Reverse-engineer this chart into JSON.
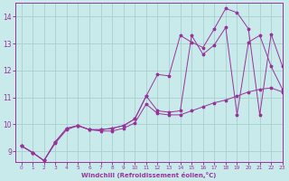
{
  "xlabel": "Windchill (Refroidissement éolien,°C)",
  "xlim": [
    -0.5,
    23
  ],
  "ylim": [
    8.6,
    14.5
  ],
  "yticks": [
    9,
    10,
    11,
    12,
    13,
    14
  ],
  "xticks": [
    0,
    1,
    2,
    3,
    4,
    5,
    6,
    7,
    8,
    9,
    10,
    11,
    12,
    13,
    14,
    15,
    16,
    17,
    18,
    19,
    20,
    21,
    22,
    23
  ],
  "bg_color": "#c8eaea",
  "grid_color": "#aacfcf",
  "line_color": "#993399",
  "series1_x": [
    0,
    1,
    2,
    3,
    4,
    5,
    6,
    7,
    8,
    9,
    10,
    11,
    12,
    13,
    14,
    15,
    16,
    17,
    18,
    19,
    20,
    21,
    22,
    23
  ],
  "series1_y": [
    9.2,
    8.95,
    8.65,
    9.3,
    9.8,
    9.95,
    9.8,
    9.75,
    9.75,
    9.85,
    10.05,
    10.75,
    10.4,
    10.35,
    10.35,
    10.5,
    10.65,
    10.8,
    10.9,
    11.05,
    11.2,
    11.3,
    11.35,
    11.2
  ],
  "series2_x": [
    0,
    1,
    2,
    3,
    4,
    5,
    6,
    7,
    8,
    9,
    10,
    11,
    12,
    13,
    14,
    15,
    16,
    17,
    18,
    19,
    20,
    21,
    22,
    23
  ],
  "series2_y": [
    9.2,
    8.95,
    8.65,
    9.35,
    9.85,
    9.95,
    9.8,
    9.8,
    9.85,
    9.95,
    10.2,
    11.05,
    10.5,
    10.45,
    10.5,
    13.3,
    12.6,
    12.95,
    13.6,
    10.35,
    13.05,
    13.3,
    12.15,
    11.3
  ],
  "series3_x": [
    0,
    1,
    2,
    3,
    4,
    5,
    6,
    7,
    8,
    9,
    10,
    11,
    12,
    13,
    14,
    15,
    16,
    17,
    18,
    19,
    20,
    21,
    22,
    23
  ],
  "series3_y": [
    9.2,
    8.95,
    8.65,
    9.35,
    9.85,
    9.95,
    9.8,
    9.8,
    9.85,
    9.95,
    10.2,
    11.05,
    11.85,
    11.8,
    13.3,
    13.05,
    12.85,
    13.55,
    14.3,
    14.15,
    13.55,
    10.35,
    13.35,
    12.15
  ]
}
